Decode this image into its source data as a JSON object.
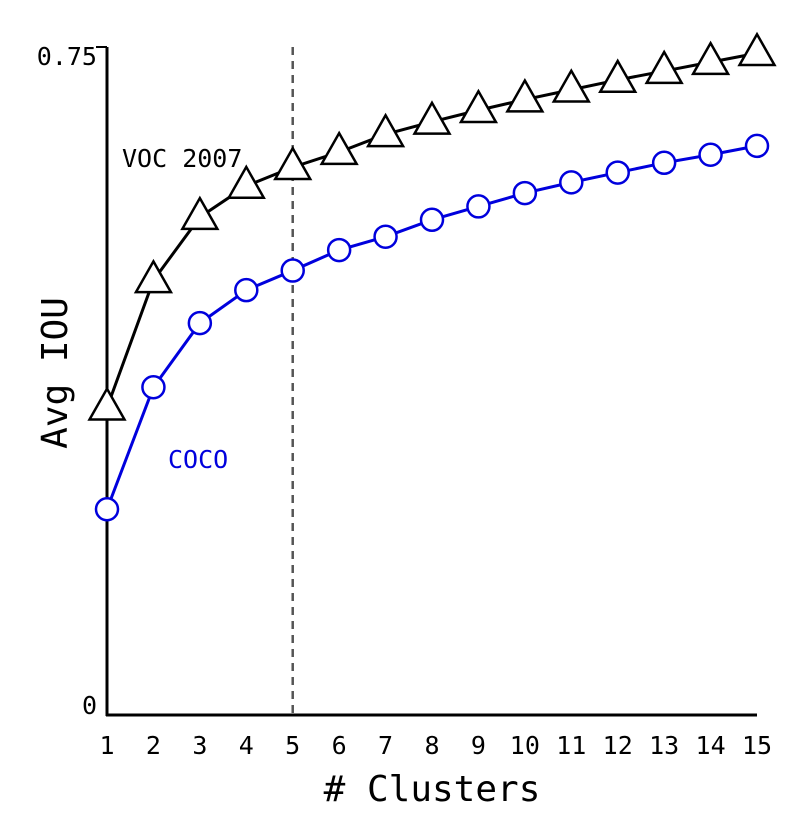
{
  "chart_data": {
    "type": "line",
    "title": "",
    "xlabel": "# Clusters",
    "ylabel": "Avg IOU",
    "x": [
      1,
      2,
      3,
      4,
      5,
      6,
      7,
      8,
      9,
      10,
      11,
      12,
      13,
      14,
      15
    ],
    "xlim": [
      1,
      15
    ],
    "ylim": [
      0,
      0.75
    ],
    "y_tick_labels": [
      "0",
      "0.75"
    ],
    "reference_line": {
      "x": 5,
      "style": "dashed",
      "color": "#555555"
    },
    "grid": false,
    "legend": "none",
    "series": [
      {
        "name": "VOC 2007",
        "color": "#000000",
        "marker": "triangle",
        "values": [
          0.345,
          0.488,
          0.559,
          0.594,
          0.615,
          0.632,
          0.652,
          0.666,
          0.679,
          0.691,
          0.702,
          0.713,
          0.723,
          0.733,
          0.743
        ]
      },
      {
        "name": "COCO",
        "color": "#0000dd",
        "marker": "circle",
        "values": [
          0.231,
          0.368,
          0.44,
          0.477,
          0.499,
          0.522,
          0.537,
          0.556,
          0.571,
          0.586,
          0.598,
          0.609,
          0.62,
          0.629,
          0.639
        ]
      }
    ]
  }
}
